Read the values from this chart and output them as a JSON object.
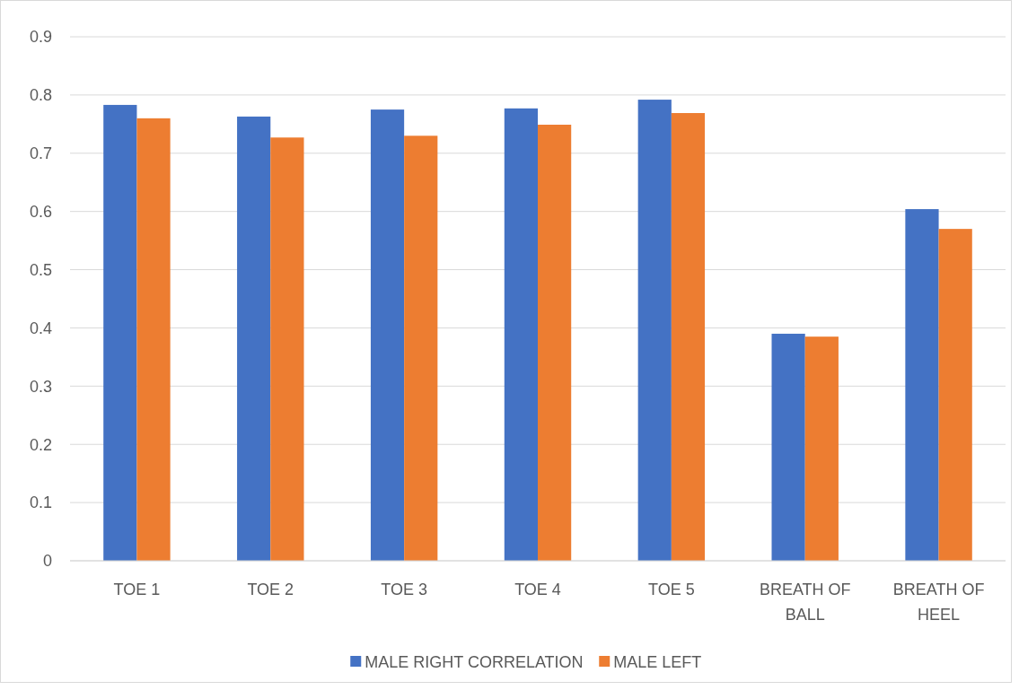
{
  "chart_data": {
    "type": "bar",
    "categories": [
      "TOE 1",
      "TOE 2",
      "TOE 3",
      "TOE 4",
      "TOE 5",
      "BREATH OF BALL",
      "BREATH OF HEEL"
    ],
    "series": [
      {
        "name": "MALE RIGHT CORRELATION",
        "color": "#4472c4",
        "values": [
          0.783,
          0.763,
          0.775,
          0.777,
          0.792,
          0.39,
          0.604
        ]
      },
      {
        "name": "MALE LEFT",
        "color": "#ed7d31",
        "values": [
          0.76,
          0.727,
          0.73,
          0.749,
          0.769,
          0.385,
          0.57
        ]
      }
    ],
    "ylim": [
      0,
      0.9
    ],
    "yticks": [
      0,
      0.1,
      0.2,
      0.3,
      0.4,
      0.5,
      0.6,
      0.7,
      0.8,
      0.9
    ],
    "grid": "y",
    "legend": "bottom"
  }
}
